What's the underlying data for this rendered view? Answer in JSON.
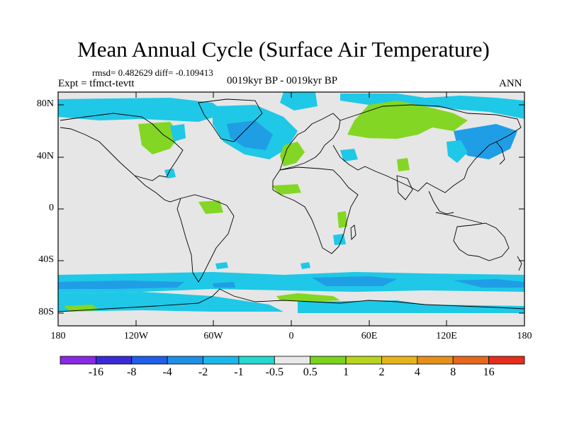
{
  "header": {
    "title": "Mean Annual Cycle (Surface Air Temperature)",
    "stats": "rmsd= 0.482629 diff= -0.109413",
    "experiment": "Expt = tfmct-tevtt",
    "period": "0019kyr BP - 0019kyr BP",
    "season": "ANN"
  },
  "axes": {
    "lat_labels": [
      "80N",
      "40N",
      "0",
      "40S",
      "80S"
    ],
    "lon_labels": [
      "180",
      "120W",
      "60W",
      "0",
      "60E",
      "120E",
      "180"
    ],
    "lat_values": [
      80,
      40,
      0,
      -40,
      -80
    ],
    "lon_values": [
      -180,
      -120,
      -60,
      0,
      60,
      120,
      180
    ],
    "lat_range": [
      -90,
      90
    ],
    "lon_range": [
      -180,
      180
    ]
  },
  "colorbar": {
    "levels": [
      "-16",
      "-8",
      "-4",
      "-2",
      "-1",
      "-0.5",
      "0.5",
      "1",
      "2",
      "4",
      "8",
      "16"
    ],
    "colors": [
      "#8a28e6",
      "#3a2ad6",
      "#1e5ee8",
      "#1e8fe6",
      "#1ab8ea",
      "#23d8d0",
      "#e8e8e8",
      "#7ad41c",
      "#b8d41c",
      "#e6b41a",
      "#e6901a",
      "#e6681a",
      "#e62c1a"
    ]
  },
  "colors": {
    "background": "#e6e6e6",
    "cool_light": "#1fc8e6",
    "cool_mid": "#1f9ee6",
    "warm_light": "#84d624",
    "coastline": "#000000"
  }
}
